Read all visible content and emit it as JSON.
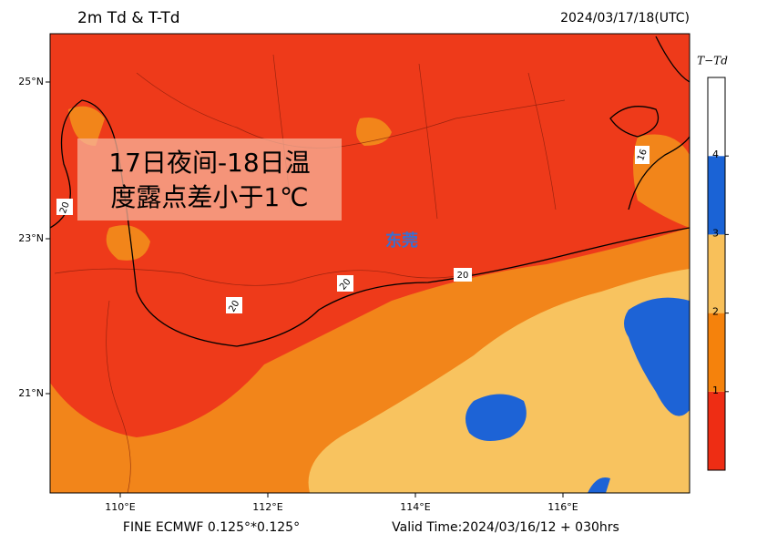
{
  "header": {
    "title": "2m Td & T-Td",
    "datetime": "2024/03/17/18(UTC)"
  },
  "annotation": {
    "lines": [
      "17日夜间-18日温",
      "度露点差小于1℃"
    ]
  },
  "city_label": "东莞",
  "contour_labels": [
    "20",
    "20",
    "20",
    "20",
    "16"
  ],
  "lat_labels": [
    "25°N",
    "23°N",
    "21°N"
  ],
  "lon_labels": [
    "110°E",
    "112°E",
    "114°E",
    "116°E"
  ],
  "footer": {
    "left": "FINE ECMWF 0.125°*0.125°",
    "right": "Valid Time:2024/03/16/12 + 030hrs"
  },
  "colorbar": {
    "title": "T−Td",
    "colors": [
      "#ee2d14",
      "#f5820c",
      "#f8c05a",
      "#1a63d6",
      "#ffffff"
    ],
    "ticks": [
      "1",
      "2",
      "3",
      "4"
    ]
  }
}
